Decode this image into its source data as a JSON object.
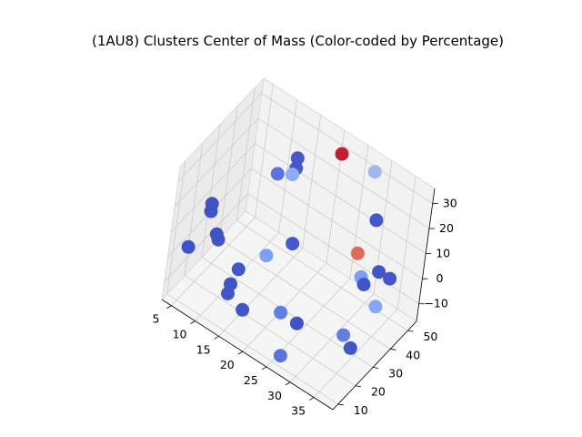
{
  "chart_data": {
    "type": "scatter",
    "projection": "3d",
    "title": "(1AU8) Clusters Center of Mass (Color-coded by Percentage)",
    "xlabel": "",
    "ylabel": "",
    "zlabel": "",
    "xlim": [
      3,
      39
    ],
    "ylim": [
      7,
      55
    ],
    "zlim": [
      -17,
      36
    ],
    "x_ticks": [
      "5",
      "10",
      "15",
      "20",
      "25",
      "30",
      "35"
    ],
    "y_ticks": [
      "10",
      "20",
      "30",
      "40",
      "50"
    ],
    "z_ticks": [
      "−10",
      "0",
      "10",
      "20",
      "30"
    ],
    "grid": true,
    "colormap": "coolwarm",
    "colors": {
      "low": "#3b4cc0",
      "mid": "#7b9ff9",
      "light": "#9dbdff",
      "high": "#d6604d",
      "max": "#b40426"
    },
    "points": [
      {
        "x": 5,
        "y": 13,
        "z": 2,
        "c": 0.02
      },
      {
        "x": 7,
        "y": 18,
        "z": 18,
        "c": 0.02
      },
      {
        "x": 7,
        "y": 18,
        "z": 15,
        "c": 0.02
      },
      {
        "x": 9,
        "y": 17,
        "z": 9,
        "c": 0.02
      },
      {
        "x": 8,
        "y": 22,
        "z": 2,
        "c": 0.03
      },
      {
        "x": 14,
        "y": 35,
        "z": 26,
        "c": 0.12
      },
      {
        "x": 16,
        "y": 38,
        "z": 26,
        "c": 0.3
      },
      {
        "x": 16,
        "y": 40,
        "z": 27,
        "c": 0.04
      },
      {
        "x": 16,
        "y": 40,
        "z": 31,
        "c": 0.04
      },
      {
        "x": 13,
        "y": 21,
        "z": -3,
        "c": 0.03
      },
      {
        "x": 13,
        "y": 17,
        "z": -6,
        "c": 0.02
      },
      {
        "x": 13,
        "y": 16,
        "z": -9,
        "c": 0.03
      },
      {
        "x": 16,
        "y": 28,
        "z": 1,
        "c": 0.25
      },
      {
        "x": 19,
        "y": 34,
        "z": 5,
        "c": 0.04
      },
      {
        "x": 21,
        "y": 52,
        "z": 30,
        "c": 0.95
      },
      {
        "x": 27,
        "y": 55,
        "z": 28,
        "c": 0.35
      },
      {
        "x": 30,
        "y": 50,
        "z": 16,
        "c": 0.04
      },
      {
        "x": 29,
        "y": 44,
        "z": 6,
        "c": 0.8
      },
      {
        "x": 18,
        "y": 10,
        "z": -5,
        "c": 0.03
      },
      {
        "x": 22,
        "y": 22,
        "z": -10,
        "c": 0.15
      },
      {
        "x": 26,
        "y": 20,
        "z": -8,
        "c": 0.02
      },
      {
        "x": 26,
        "y": 12,
        "z": -15,
        "c": 0.12
      },
      {
        "x": 31,
        "y": 44,
        "z": -4,
        "c": 0.03
      },
      {
        "x": 30,
        "y": 45,
        "z": -3,
        "c": 0.25
      },
      {
        "x": 33,
        "y": 46,
        "z": 2,
        "c": 0.03
      },
      {
        "x": 35,
        "y": 47,
        "z": 1,
        "c": 0.03
      },
      {
        "x": 35,
        "y": 40,
        "z": -5,
        "c": 0.28
      },
      {
        "x": 33,
        "y": 28,
        "z": -10,
        "c": 0.15
      },
      {
        "x": 35,
        "y": 27,
        "z": -12,
        "c": 0.03
      }
    ]
  }
}
